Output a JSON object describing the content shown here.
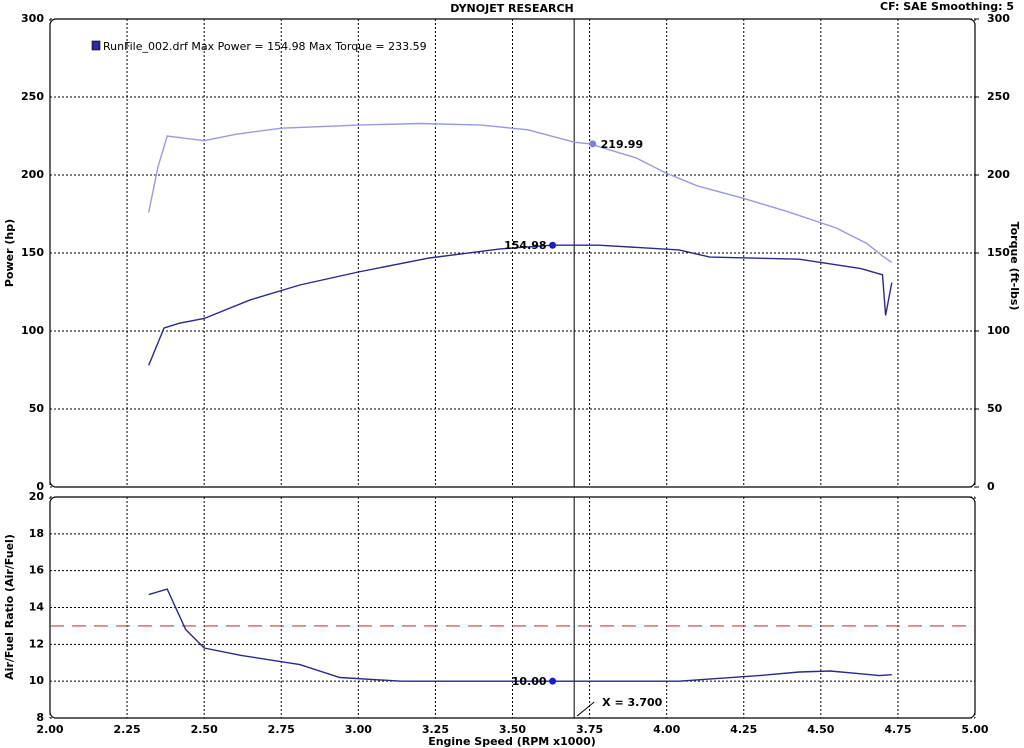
{
  "chart_data": [
    {
      "type": "line",
      "title": "DYNOJET RESEARCH",
      "subtitle": "CF: SAE  Smoothing: 5",
      "legend": "RunFile_002.drf Max Power = 154.98    Max Torque = 233.59",
      "legend_color": "#2a2a9c",
      "ylabel": "Power (hp)",
      "y2label": "Torque (ft-lbs)",
      "xlim": [
        2,
        5
      ],
      "xticks": [
        2,
        2.25,
        2.5,
        2.75,
        3,
        3.25,
        3.5,
        3.75,
        4,
        4.25,
        4.5,
        4.75,
        5
      ],
      "ylim": [
        0,
        300
      ],
      "yticks": [
        0,
        50,
        100,
        150,
        200,
        250,
        300
      ],
      "y2lim": [
        0,
        300
      ],
      "y2ticks": [
        0,
        50,
        100,
        150,
        200,
        250,
        300
      ],
      "grid": true,
      "series": [
        {
          "color": "#2a2a8c",
          "x": [
            2.32,
            2.37,
            2.42,
            2.5,
            2.65,
            2.81,
            3.0,
            3.23,
            3.46,
            3.63,
            3.78,
            4.04,
            4.14,
            4.43,
            4.63,
            4.7,
            4.71,
            4.73
          ],
          "values": [
            78,
            102,
            105,
            108,
            120,
            129.5,
            137.8,
            146.8,
            152.6,
            155,
            155,
            152,
            147.4,
            146,
            140,
            136,
            110,
            131
          ]
        },
        {
          "color": "#9a9ae0",
          "axis": "y2",
          "x": [
            2.32,
            2.35,
            2.38,
            2.42,
            2.5,
            2.6,
            2.75,
            3.0,
            3.2,
            3.4,
            3.55,
            3.7,
            3.75,
            3.9,
            4.0,
            4.1,
            4.25,
            4.4,
            4.55,
            4.65,
            4.7,
            4.73
          ],
          "values": [
            176,
            205,
            225,
            224,
            222,
            226,
            230,
            232,
            233,
            232,
            229,
            221,
            220,
            211,
            201,
            193,
            185,
            176,
            166,
            156,
            148,
            144
          ]
        }
      ],
      "annotations": [
        {
          "label": "219.99",
          "x": 3.76,
          "y": 219.99,
          "axis": "y2",
          "color": "#8080e0"
        },
        {
          "label": "154.98",
          "x": 3.63,
          "y": 154.98,
          "color": "#1a1ad0"
        }
      ],
      "cursor": {
        "x": 3.7
      }
    },
    {
      "type": "line",
      "ylabel": "Air/Fuel Ratio (Air/Fuel)",
      "xlabel": "Engine Speed (RPM x1000)",
      "xlim": [
        2,
        5
      ],
      "xticks": [
        {
          "value": 2,
          "label": "2.00"
        },
        {
          "value": 2.25,
          "label": "2.25"
        },
        {
          "value": 2.5,
          "label": "2.50"
        },
        {
          "value": 2.75,
          "label": "2.75"
        },
        {
          "value": 3,
          "label": "3.00"
        },
        {
          "value": 3.25,
          "label": "3.25"
        },
        {
          "value": 3.5,
          "label": "3.50"
        },
        {
          "value": 3.75,
          "label": "3.75"
        },
        {
          "value": 4,
          "label": "4.00"
        },
        {
          "value": 4.25,
          "label": "4.25"
        },
        {
          "value": 4.5,
          "label": "4.50"
        },
        {
          "value": 4.75,
          "label": "4.75"
        },
        {
          "value": 5,
          "label": "5.00"
        }
      ],
      "ylim": [
        8,
        20
      ],
      "yticks": [
        8,
        10,
        12,
        14,
        16,
        18,
        20
      ],
      "grid": true,
      "series": [
        {
          "color": "#2a2a8c",
          "x": [
            2.32,
            2.38,
            2.44,
            2.5,
            2.62,
            2.81,
            2.94,
            3.14,
            3.63,
            4.04,
            4.3,
            4.43,
            4.53,
            4.63,
            4.69,
            4.73
          ],
          "values": [
            14.7,
            15.0,
            12.8,
            11.8,
            11.4,
            10.9,
            10.2,
            10.0,
            10.0,
            10.0,
            10.3,
            10.5,
            10.55,
            10.4,
            10.3,
            10.35
          ]
        }
      ],
      "ref_line": {
        "y": 13,
        "color": "#c04040"
      },
      "annotations": [
        {
          "label": "10.00",
          "x": 3.63,
          "y": 10.0,
          "color": "#1a1ad0"
        }
      ],
      "cursor": {
        "x": 3.7,
        "label": "X = 3.700"
      }
    }
  ]
}
